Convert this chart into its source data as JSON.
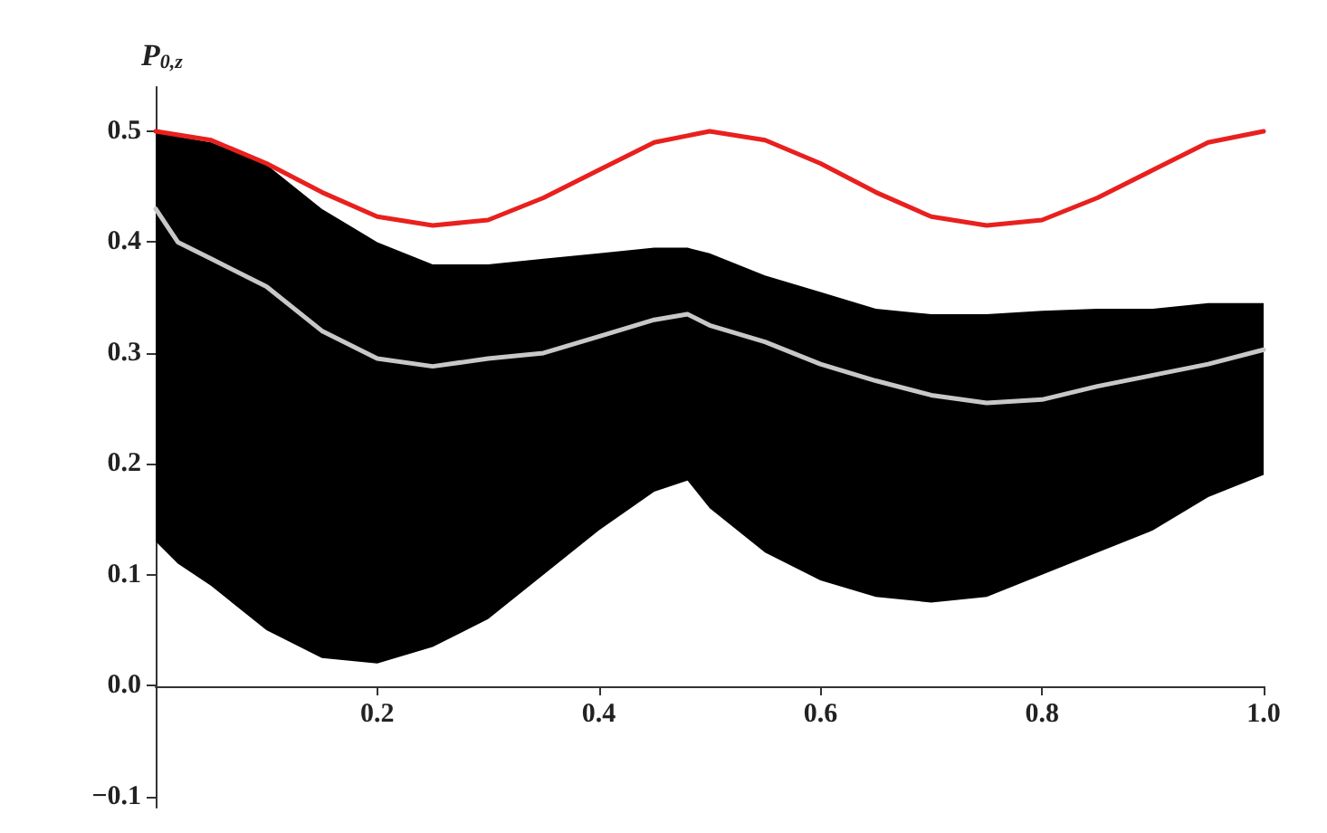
{
  "chart_data": {
    "type": "line",
    "ylabel": "P$_{0,z}$",
    "xlim": [
      0,
      1
    ],
    "ylim": [
      -0.11,
      0.54
    ],
    "xticks": [
      0.2,
      0.4,
      0.6,
      0.8,
      {
        "value": 1,
        "label": "1.0"
      }
    ],
    "yticks": [
      {
        "value": -0.1,
        "label": "−0.1"
      },
      {
        "value": 0,
        "label": "0.0"
      },
      0.1,
      0.2,
      0.3,
      0.4,
      0.5
    ],
    "marker": "none",
    "line_style": "solid",
    "series": [
      {
        "color": "#e8201e",
        "x": [
          0,
          0.05,
          0.1,
          0.15,
          0.2,
          0.25,
          0.3,
          0.35,
          0.4,
          0.45,
          0.5,
          0.55,
          0.6,
          0.65,
          0.7,
          0.75,
          0.8,
          0.85,
          0.9,
          0.95,
          1
        ],
        "values": [
          0.5,
          0.492,
          0.471,
          0.445,
          0.423,
          0.415,
          0.42,
          0.44,
          0.465,
          0.49,
          0.5,
          0.492,
          0.471,
          0.445,
          0.423,
          0.415,
          0.42,
          0.44,
          0.465,
          0.49,
          0.5
        ]
      },
      {
        "color": "#c8c8c8",
        "x": [
          0,
          0.02,
          0.05,
          0.1,
          0.15,
          0.2,
          0.25,
          0.3,
          0.35,
          0.4,
          0.45,
          0.48,
          0.5,
          0.55,
          0.6,
          0.65,
          0.7,
          0.75,
          0.8,
          0.85,
          0.9,
          0.95,
          1
        ],
        "values": [
          0.43,
          0.4,
          0.385,
          0.36,
          0.32,
          0.295,
          0.288,
          0.295,
          0.3,
          0.315,
          0.33,
          0.335,
          0.325,
          0.31,
          0.29,
          0.275,
          0.262,
          0.255,
          0.258,
          0.27,
          0.28,
          0.29,
          0.303
        ],
        "lower": [
          0.13,
          0.11,
          0.09,
          0.05,
          0.025,
          0.02,
          0.035,
          0.06,
          0.1,
          0.14,
          0.175,
          0.185,
          0.16,
          0.12,
          0.095,
          0.08,
          0.075,
          0.08,
          0.1,
          0.12,
          0.14,
          0.17,
          0.19
        ],
        "upper": [
          0.5,
          0.495,
          0.49,
          0.47,
          0.43,
          0.4,
          0.38,
          0.38,
          0.385,
          0.39,
          0.395,
          0.395,
          0.39,
          0.37,
          0.355,
          0.34,
          0.335,
          0.335,
          0.338,
          0.34,
          0.34,
          0.345,
          0.345
        ]
      }
    ]
  }
}
